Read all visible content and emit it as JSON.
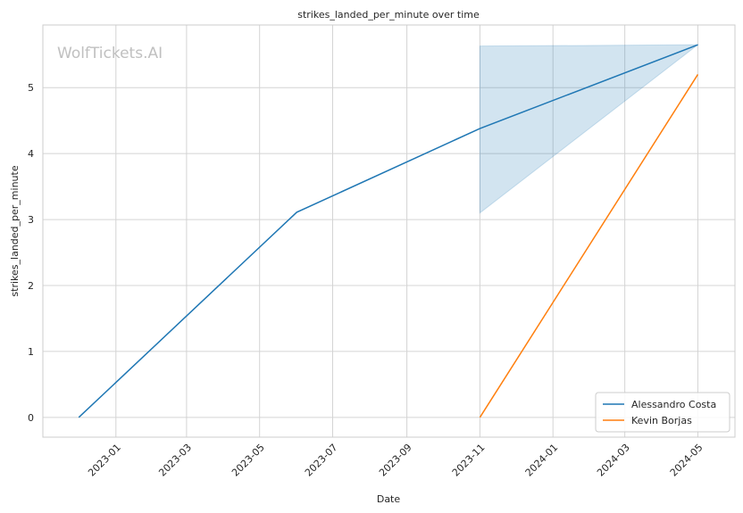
{
  "chart_data": {
    "type": "line",
    "title": "strikes_landed_per_minute over time",
    "xlabel": "Date",
    "ylabel": "strikes_landed_per_minute",
    "watermark": "WolfTickets.AI",
    "x": [
      "2022-12",
      "2023-06",
      "2023-11",
      "2024-05"
    ],
    "series": [
      {
        "name": "Alessandro Costa",
        "color": "#1f77b4",
        "values": [
          0,
          3.11,
          4.38,
          5.65
        ],
        "band_lower": [
          null,
          null,
          3.1,
          5.65
        ],
        "band_upper": [
          null,
          null,
          5.63,
          5.65
        ]
      },
      {
        "name": "Kevin Borjas",
        "color": "#ff7f0e",
        "values": [
          null,
          null,
          0,
          5.2
        ]
      }
    ],
    "xlim": [
      "2022-11",
      "2024-06"
    ],
    "xticks": [
      "2023-01",
      "2023-03",
      "2023-05",
      "2023-07",
      "2023-09",
      "2023-11",
      "2024-01",
      "2024-03",
      "2024-05"
    ],
    "ylim": [
      -0.3,
      5.95
    ],
    "yticks": [
      0,
      1,
      2,
      3,
      4,
      5
    ],
    "grid": true,
    "legend": "lower right"
  }
}
